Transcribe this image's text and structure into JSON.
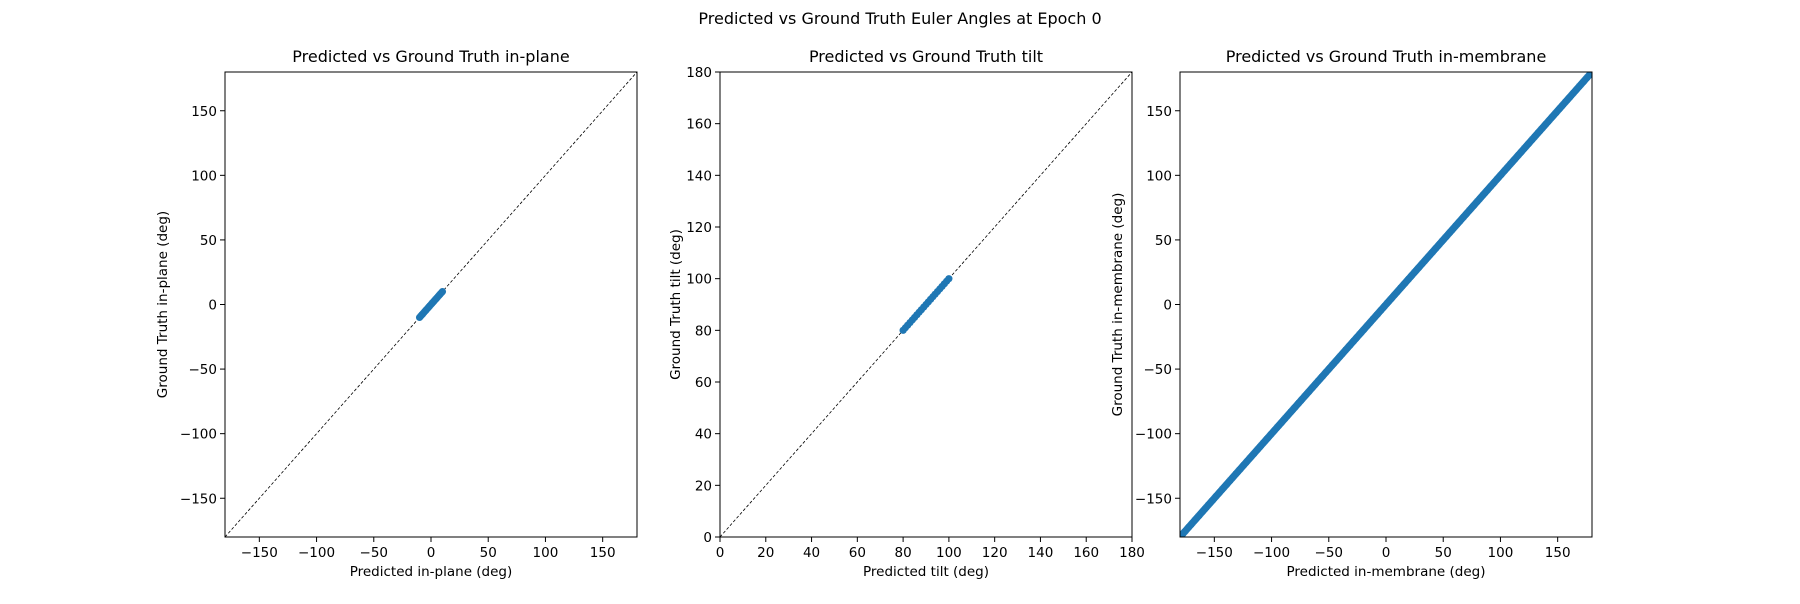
{
  "figure": {
    "suptitle": "Predicted vs Ground Truth Euler Angles at Epoch 0"
  },
  "style": {
    "point_color": "#1f77b4",
    "reference_line_color": "#000000",
    "background": "#ffffff"
  },
  "chart_data": [
    {
      "type": "scatter",
      "title": "Predicted vs Ground Truth in-plane",
      "xlabel": "Predicted in-plane (deg)",
      "ylabel": "Ground Truth in-plane (deg)",
      "xlim": [
        -180,
        180
      ],
      "ylim": [
        -180,
        180
      ],
      "xticks": [
        -150,
        -100,
        -50,
        0,
        50,
        100,
        150
      ],
      "yticks": [
        -150,
        -100,
        -50,
        0,
        50,
        100,
        150
      ],
      "xticklabels": [
        "−150",
        "−100",
        "−50",
        "0",
        "50",
        "100",
        "150"
      ],
      "yticklabels": [
        "−150",
        "−100",
        "−50",
        "0",
        "50",
        "100",
        "150"
      ],
      "reference_line": "y = x (dashed)",
      "grid": false,
      "series": [
        {
          "range": [
            -10,
            10
          ],
          "step": 1,
          "relation": "y = x"
        }
      ]
    },
    {
      "type": "scatter",
      "title": "Predicted vs Ground Truth tilt",
      "xlabel": "Predicted tilt (deg)",
      "ylabel": "Ground Truth tilt (deg)",
      "xlim": [
        0,
        180
      ],
      "ylim": [
        0,
        180
      ],
      "xticks": [
        0,
        20,
        40,
        60,
        80,
        100,
        120,
        140,
        160,
        180
      ],
      "yticks": [
        0,
        20,
        40,
        60,
        80,
        100,
        120,
        140,
        160,
        180
      ],
      "xticklabels": [
        "0",
        "20",
        "40",
        "60",
        "80",
        "100",
        "120",
        "140",
        "160",
        "180"
      ],
      "yticklabels": [
        "0",
        "20",
        "40",
        "60",
        "80",
        "100",
        "120",
        "140",
        "160",
        "180"
      ],
      "reference_line": "y = x (dashed)",
      "grid": false,
      "series": [
        {
          "range": [
            80,
            100
          ],
          "step": 1,
          "relation": "y = x"
        }
      ]
    },
    {
      "type": "scatter",
      "title": "Predicted vs Ground Truth in-membrane",
      "xlabel": "Predicted in-membrane (deg)",
      "ylabel": "Ground Truth in-membrane (deg)",
      "xlim": [
        -180,
        180
      ],
      "ylim": [
        -180,
        180
      ],
      "xticks": [
        -150,
        -100,
        -50,
        0,
        50,
        100,
        150
      ],
      "yticks": [
        -150,
        -100,
        -50,
        0,
        50,
        100,
        150
      ],
      "xticklabels": [
        "−150",
        "−100",
        "−50",
        "0",
        "50",
        "100",
        "150"
      ],
      "yticklabels": [
        "−150",
        "−100",
        "−50",
        "0",
        "50",
        "100",
        "150"
      ],
      "reference_line": "y = x (dashed)",
      "grid": false,
      "series": [
        {
          "range": [
            -180,
            180
          ],
          "step": 1,
          "relation": "y = x"
        }
      ]
    }
  ]
}
